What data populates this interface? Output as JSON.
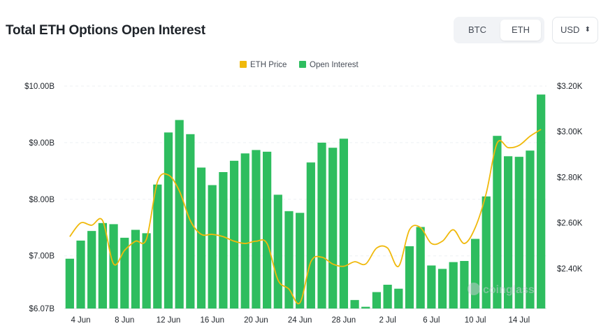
{
  "header": {
    "title": "Total ETH Options Open Interest",
    "asset_toggle": {
      "options": [
        "BTC",
        "ETH"
      ],
      "selected": "ETH"
    },
    "currency_select": {
      "value": "USD",
      "icon": "chevron-updown-icon"
    }
  },
  "watermark": {
    "text": "coinglass",
    "icon": "coinglass-logo-icon"
  },
  "chart_data": {
    "type": "bar",
    "legend": {
      "position": "top-center",
      "entries": [
        {
          "name": "ETH Price",
          "color": "#f0b90b"
        },
        {
          "name": "Open Interest",
          "color": "#2ebd5f"
        }
      ]
    },
    "x_tick_labels": [
      "4 Jun",
      "8 Jun",
      "12 Jun",
      "16 Jun",
      "20 Jun",
      "24 Jun",
      "28 Jun",
      "2 Jul",
      "6 Jul",
      "10 Jul",
      "14 Jul"
    ],
    "y_left": {
      "ticks": [
        "$6.07B",
        "$7.00B",
        "$8.00B",
        "$9.00B",
        "$10.00B"
      ],
      "tick_values": [
        6.07,
        7.0,
        8.0,
        9.0,
        10.0
      ],
      "range": [
        6.07,
        10.0
      ],
      "unit": "B USD"
    },
    "y_right": {
      "ticks": [
        "$2.40K",
        "$2.60K",
        "$2.80K",
        "$3.00K",
        "$3.20K"
      ],
      "tick_values": [
        2.4,
        2.6,
        2.8,
        3.0,
        3.2
      ],
      "range": [
        2.225,
        3.2
      ],
      "unit": "K USD"
    },
    "grid": true,
    "series": [
      {
        "name": "Open Interest",
        "axis": "left",
        "type": "bar",
        "color": "#2ebd5f",
        "values": [
          6.95,
          7.27,
          7.44,
          7.58,
          7.56,
          7.32,
          7.46,
          7.4,
          8.26,
          9.18,
          9.4,
          9.15,
          8.56,
          8.25,
          8.48,
          8.68,
          8.81,
          8.87,
          8.84,
          8.08,
          7.79,
          7.76,
          8.65,
          9.0,
          8.91,
          9.07,
          6.22,
          6.1,
          6.36,
          6.49,
          6.42,
          7.17,
          7.51,
          6.83,
          6.77,
          6.89,
          6.91,
          7.3,
          8.05,
          9.12,
          8.76,
          8.75,
          8.86,
          9.85
        ]
      },
      {
        "name": "ETH Price",
        "axis": "right",
        "type": "line",
        "color": "#f0b90b",
        "values": [
          2.54,
          2.6,
          2.59,
          2.61,
          2.42,
          2.48,
          2.52,
          2.53,
          2.78,
          2.81,
          2.74,
          2.61,
          2.55,
          2.55,
          2.54,
          2.52,
          2.51,
          2.52,
          2.51,
          2.35,
          2.31,
          2.25,
          2.43,
          2.45,
          2.42,
          2.41,
          2.43,
          2.42,
          2.49,
          2.49,
          2.41,
          2.57,
          2.58,
          2.51,
          2.52,
          2.57,
          2.51,
          2.58,
          2.73,
          2.95,
          2.93,
          2.94,
          2.98,
          3.01
        ]
      }
    ]
  }
}
